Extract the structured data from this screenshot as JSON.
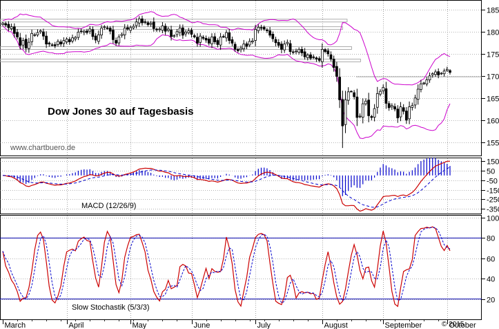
{
  "page": {
    "title": "Dow Jones 30 auf Tagesbasis",
    "source": "www.chartbuero.de",
    "copyright": "© 2015",
    "colors": {
      "price": "#000000",
      "bands": "#cc00cc",
      "macd": "#cc0000",
      "signal": "#0000cc",
      "histogram": "#0000cc",
      "stoch_k": "#cc0000",
      "stoch_d": "#0000cc",
      "stoch_levels": "#0000aa",
      "grid": "#666666"
    }
  },
  "chart_data": [
    {
      "type": "candlestick",
      "title": "Dow Jones 30 auf Tagesbasis",
      "ylim": [
        15200,
        18700
      ],
      "yticks": [
        15500,
        16000,
        16500,
        17000,
        17500,
        18000,
        18500
      ],
      "ytick_labels": [
        "15500",
        "16000",
        "16500",
        "17000",
        "17500",
        "18000",
        "18500"
      ],
      "months": [
        "March",
        "April",
        "May",
        "June",
        "July",
        "August",
        "September",
        "October"
      ],
      "support_lines": [
        18250,
        18080,
        17630,
        17350
      ],
      "ohlc": {
        "start_date": "2015-03-02",
        "days": 155,
        "close": [
          18190,
          18150,
          18090,
          18110,
          17960,
          17880,
          17690,
          17800,
          17630,
          17760,
          17960,
          17930,
          17980,
          18020,
          17900,
          17720,
          17720,
          17700,
          17680,
          17780,
          17720,
          17800,
          17830,
          17770,
          17860,
          17870,
          17990,
          18000,
          18010,
          17980,
          18060,
          17890,
          17810,
          17930,
          18080,
          18110,
          18080,
          18010,
          17820,
          17740,
          17880,
          17940,
          18080,
          18060,
          18090,
          18120,
          18220,
          18290,
          18200,
          18220,
          18160,
          18190,
          18070,
          18040,
          18060,
          18130,
          18010,
          18060,
          17890,
          17910,
          18000,
          18080,
          17920,
          17990,
          18020,
          17940,
          17880,
          17740,
          17900,
          17850,
          17810,
          17740,
          17880,
          17770,
          17710,
          17880,
          17890,
          17980,
          17800,
          17740,
          17600,
          17570,
          17630,
          17720,
          17670,
          17780,
          17790,
          18050,
          18100,
          18080,
          18060,
          18020,
          17920,
          17840,
          17750,
          17690,
          17600,
          17720,
          17760,
          17550,
          17530,
          17560,
          17600,
          17520,
          17430,
          17470,
          17400,
          17420,
          17380,
          17350,
          17600,
          17550,
          17500,
          17380,
          17190,
          16990,
          16460,
          15870,
          16460,
          16640,
          16650,
          16530,
          16060,
          16090,
          16370,
          16430,
          16100,
          16060,
          16260,
          16600,
          16650,
          16740,
          16380,
          16280,
          16330,
          16250,
          16050,
          16300,
          16200,
          16000,
          16300,
          16330,
          16500,
          16700,
          16820,
          16840,
          16910,
          17000,
          17050,
          17090,
          17020,
          17060,
          17110,
          17150,
          17080
        ]
      }
    },
    {
      "type": "line",
      "title": "MACD (12/26/9)",
      "ylim": [
        -400,
        180
      ],
      "yticks": [
        150,
        50,
        -50,
        -150,
        -250,
        -350
      ],
      "ytick_labels": [
        "150",
        "50",
        "-50",
        "-150",
        "-250",
        "-350"
      ]
    },
    {
      "type": "line",
      "title": "Slow Stochastik (5/3/3)",
      "ylim": [
        0,
        102
      ],
      "yticks": [
        100,
        80,
        60,
        40,
        20
      ],
      "ytick_labels": [
        "100",
        "80",
        "60",
        "40",
        "20"
      ],
      "levels": [
        80,
        20
      ]
    }
  ]
}
